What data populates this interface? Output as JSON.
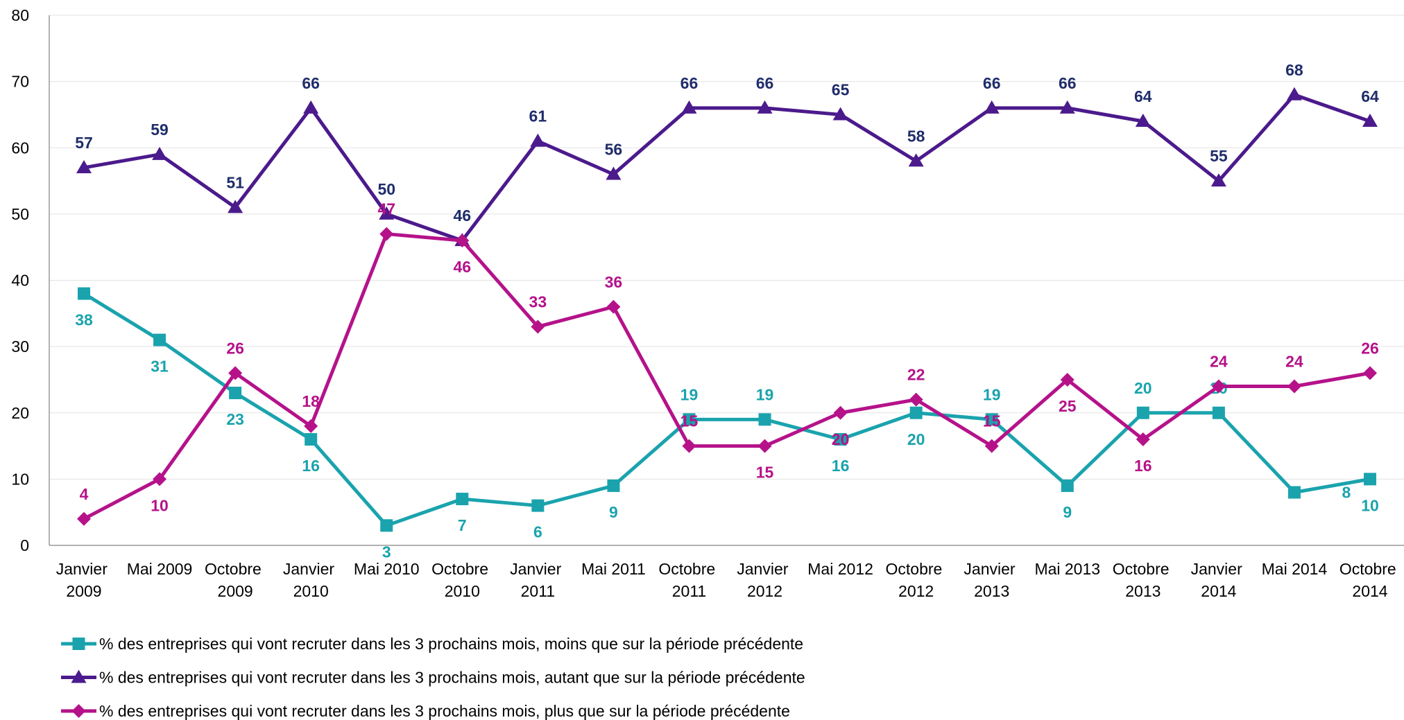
{
  "chart_data": {
    "type": "line",
    "categories": [
      "Janvier 2009",
      "Mai 2009",
      "Octobre 2009",
      "Janvier 2010",
      "Mai 2010",
      "Octobre 2010",
      "Janvier 2011",
      "Mai 2011",
      "Octobre 2011",
      "Janvier 2012",
      "Mai 2012",
      "Octobre 2012",
      "Janvier 2013",
      "Mai 2013",
      "Octobre 2013",
      "Janvier 2014",
      "Mai 2014",
      "Octobre 2014"
    ],
    "series": [
      {
        "name": "% des entreprises qui vont recruter dans les 3 prochains mois, moins que sur la période précédente",
        "color": "#1aa3ad",
        "marker": "square",
        "values": [
          38,
          31,
          23,
          16,
          3,
          7,
          6,
          9,
          19,
          19,
          16,
          20,
          19,
          9,
          20,
          20,
          8,
          10
        ]
      },
      {
        "name": "% des entreprises qui vont recruter dans les 3 prochains mois, autant que sur la période précédente",
        "color": "#4b1a8c",
        "label_color": "#1f2d6b",
        "marker": "triangle",
        "values": [
          57,
          59,
          51,
          66,
          50,
          46,
          61,
          56,
          66,
          66,
          65,
          58,
          66,
          66,
          64,
          55,
          68,
          64
        ]
      },
      {
        "name": "% des entreprises qui vont recruter dans les 3 prochains mois, plus que sur la période précédente",
        "color": "#b5128a",
        "marker": "diamond",
        "values": [
          4,
          10,
          26,
          18,
          47,
          46,
          33,
          36,
          15,
          15,
          20,
          22,
          15,
          25,
          16,
          24,
          24,
          26
        ]
      }
    ],
    "ylim": [
      0,
      80
    ],
    "yticks": [
      0,
      10,
      20,
      30,
      40,
      50,
      60,
      70,
      80
    ],
    "grid": true,
    "legend": "bottom"
  }
}
